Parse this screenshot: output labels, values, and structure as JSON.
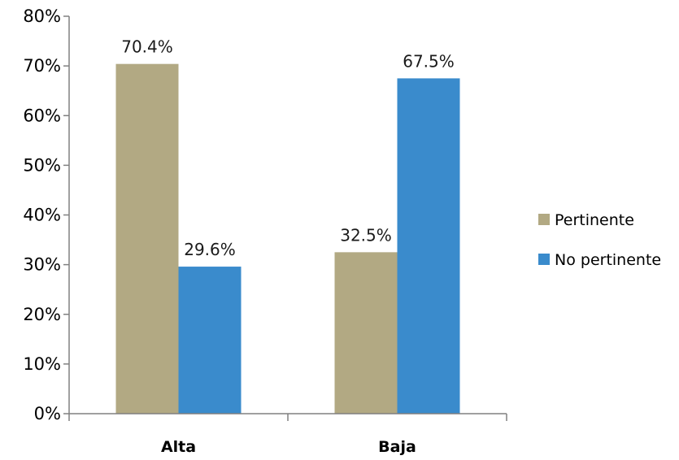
{
  "chart_data": {
    "type": "bar",
    "categories": [
      "Alta",
      "Baja"
    ],
    "series": [
      {
        "name": "Pertinente",
        "values": [
          70.4,
          32.5
        ],
        "color": "#b2a983",
        "labels": [
          "70.4%",
          "32.5%"
        ]
      },
      {
        "name": "No pertinente",
        "values": [
          29.6,
          67.5
        ],
        "color": "#3a8bcc",
        "labels": [
          "29.6%",
          "67.5%"
        ]
      }
    ],
    "ylim": [
      0,
      80
    ],
    "yticks": [
      0,
      10,
      20,
      30,
      40,
      50,
      60,
      70,
      80
    ],
    "ytick_labels": [
      "0%",
      "10%",
      "20%",
      "30%",
      "40%",
      "50%",
      "60%",
      "70%",
      "80%"
    ],
    "grid": false,
    "legend": "right"
  }
}
